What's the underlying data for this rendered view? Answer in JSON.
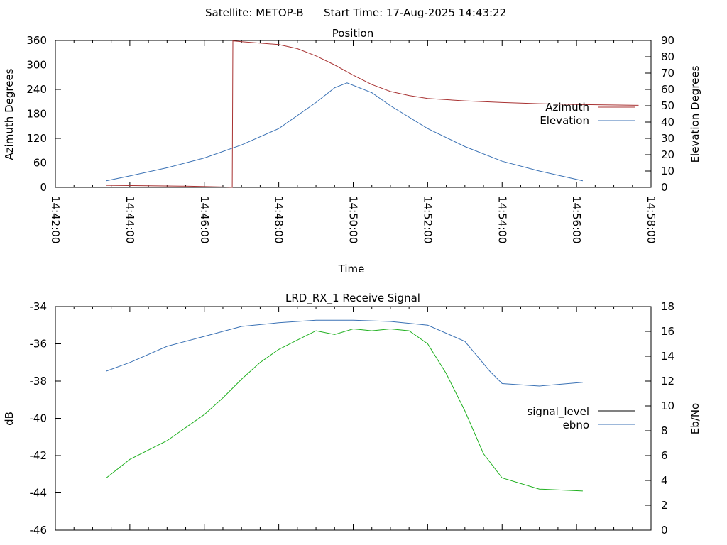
{
  "header": {
    "satellite": "Satellite: METOP-B",
    "start_time": "Start Time: 17-Aug-2025 14:43:22"
  },
  "chart_data": [
    {
      "type": "line",
      "title": "Position",
      "xlabel": "Time",
      "ylabel": "Azimuth Degrees",
      "y2label": "Elevation Degrees",
      "xlim": [
        "14:42:00",
        "14:58:00"
      ],
      "ylim": [
        0,
        360
      ],
      "y2lim": [
        0,
        90
      ],
      "x_ticks": [
        "14:42:00",
        "14:44:00",
        "14:46:00",
        "14:48:00",
        "14:50:00",
        "14:52:00",
        "14:54:00",
        "14:56:00",
        "14:58:00"
      ],
      "y_ticks": [
        "0",
        "60",
        "120",
        "180",
        "240",
        "300",
        "360"
      ],
      "y2_ticks": [
        "0",
        "10",
        "20",
        "30",
        "40",
        "50",
        "60",
        "70",
        "80",
        "90"
      ],
      "legend_position": "right",
      "grid": false,
      "series": [
        {
          "name": "Azimuth",
          "axis": "left",
          "color": "#a83232",
          "x": [
            "14:43:22",
            "14:44:30",
            "14:45:30",
            "14:46:30",
            "14:46:45",
            "14:46:46",
            "14:47:00",
            "14:48:00",
            "14:48:30",
            "14:49:00",
            "14:49:30",
            "14:50:00",
            "14:50:30",
            "14:51:00",
            "14:51:30",
            "14:52:00",
            "14:53:00",
            "14:54:00",
            "14:55:00",
            "14:56:00",
            "14:57:40"
          ],
          "values": [
            5,
            4,
            3,
            1,
            0,
            359,
            357,
            350,
            340,
            322,
            300,
            275,
            252,
            235,
            225,
            218,
            212,
            208,
            205,
            203,
            201
          ]
        },
        {
          "name": "Elevation",
          "axis": "right",
          "color": "#3b72b5",
          "x": [
            "14:43:22",
            "14:44:00",
            "14:45:00",
            "14:46:00",
            "14:47:00",
            "14:48:00",
            "14:49:00",
            "14:49:30",
            "14:49:50",
            "14:50:30",
            "14:51:00",
            "14:52:00",
            "14:53:00",
            "14:54:00",
            "14:55:00",
            "14:56:10"
          ],
          "values": [
            4,
            7,
            12,
            18,
            26,
            36,
            52,
            61,
            64,
            58,
            50,
            36,
            25,
            16,
            10,
            4
          ]
        }
      ]
    },
    {
      "type": "line",
      "title": "LRD_RX_1 Receive Signal",
      "xlabel": "",
      "ylabel": "dB",
      "y2label": "Eb/No",
      "xlim": [
        "14:42:00",
        "14:58:00"
      ],
      "ylim": [
        -46,
        -34
      ],
      "y2lim": [
        0,
        18
      ],
      "y_ticks": [
        "-34",
        "-36",
        "-38",
        "-40",
        "-42",
        "-44",
        "-46"
      ],
      "y2_ticks": [
        "0",
        "2",
        "4",
        "6",
        "8",
        "10",
        "12",
        "14",
        "16",
        "18"
      ],
      "legend_position": "right",
      "grid": false,
      "series": [
        {
          "name": "signal_level",
          "axis": "left",
          "color": "#000000",
          "x": [],
          "values": []
        },
        {
          "name": "ebno",
          "axis": "right",
          "color": "#3b72b5",
          "x": [
            "14:43:22",
            "14:44:00",
            "14:45:00",
            "14:46:00",
            "14:47:00",
            "14:48:00",
            "14:49:00",
            "14:50:00",
            "14:51:00",
            "14:52:00",
            "14:53:00",
            "14:53:40",
            "14:54:00",
            "14:55:00",
            "14:56:10"
          ],
          "values": [
            12.8,
            13.5,
            14.8,
            15.6,
            16.4,
            16.7,
            16.9,
            16.9,
            16.8,
            16.5,
            15.2,
            12.8,
            11.8,
            11.6,
            11.9
          ]
        },
        {
          "name": "",
          "axis": "left",
          "color": "#1fb01f",
          "x": [
            "14:43:22",
            "14:44:00",
            "14:45:00",
            "14:46:00",
            "14:46:30",
            "14:47:00",
            "14:47:30",
            "14:48:00",
            "14:48:30",
            "14:49:00",
            "14:49:30",
            "14:50:00",
            "14:50:30",
            "14:51:00",
            "14:51:30",
            "14:52:00",
            "14:52:30",
            "14:53:00",
            "14:53:30",
            "14:54:00",
            "14:55:00",
            "14:56:10"
          ],
          "values": [
            -43.2,
            -42.2,
            -41.2,
            -39.8,
            -38.9,
            -37.9,
            -37.0,
            -36.3,
            -35.8,
            -35.3,
            -35.5,
            -35.2,
            -35.3,
            -35.2,
            -35.3,
            -36.0,
            -37.6,
            -39.6,
            -41.9,
            -43.2,
            -43.8,
            -43.9
          ]
        }
      ]
    }
  ]
}
